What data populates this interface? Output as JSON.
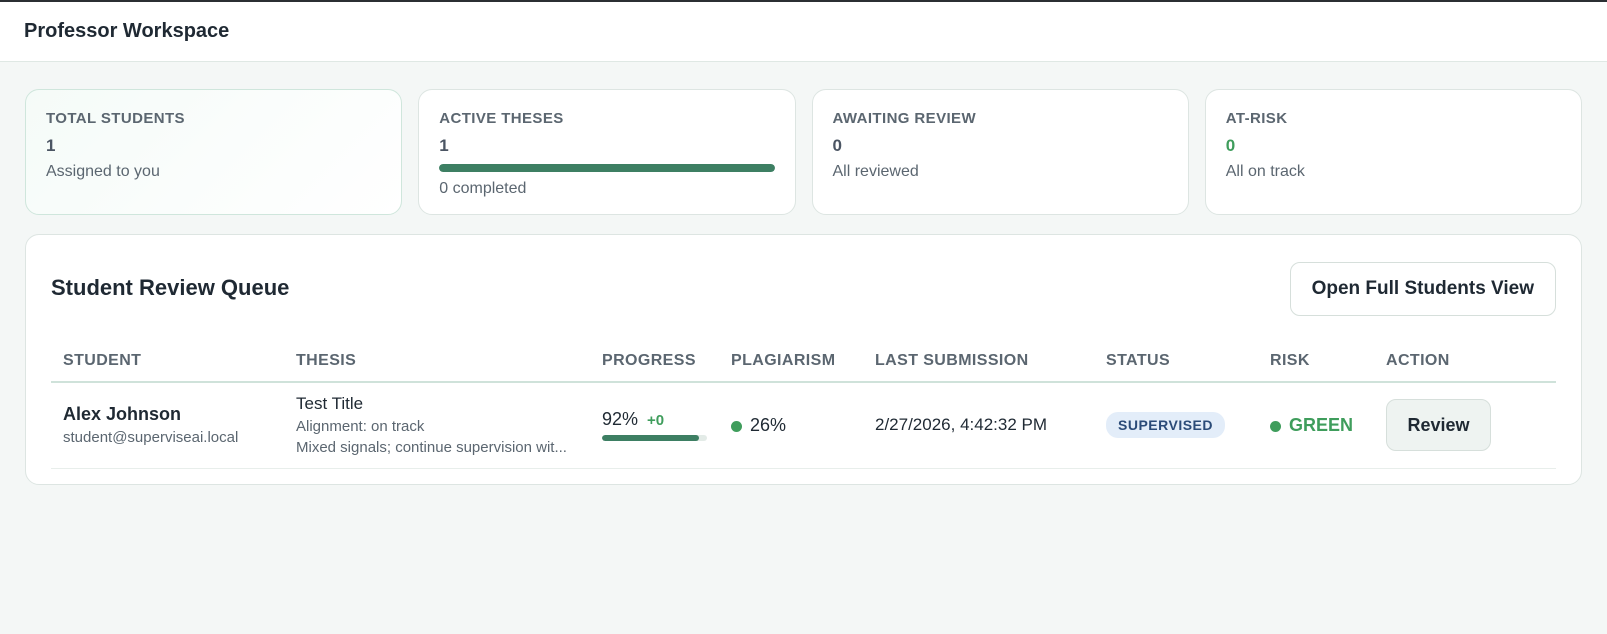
{
  "header": {
    "title": "Professor Workspace"
  },
  "stats": [
    {
      "label": "TOTAL STUDENTS",
      "value": "1",
      "sub": "Assigned to you"
    },
    {
      "label": "ACTIVE THESES",
      "value": "1",
      "progress": 1.0,
      "sub": "0 completed"
    },
    {
      "label": "AWAITING REVIEW",
      "value": "0",
      "sub": "All reviewed"
    },
    {
      "label": "AT-RISK",
      "value": "0",
      "sub": "All on track"
    }
  ],
  "queue": {
    "title": "Student Review Queue",
    "open_button": "Open Full Students View",
    "columns": [
      "STUDENT",
      "THESIS",
      "PROGRESS",
      "PLAGIARISM",
      "LAST SUBMISSION",
      "STATUS",
      "RISK",
      "ACTION"
    ],
    "rows": [
      {
        "name": "Alex Johnson",
        "email": "student@superviseai.local",
        "thesis_title": "Test Title",
        "alignment": "Alignment: on track",
        "note": "Mixed signals; continue supervision wit...",
        "progress": "92%",
        "progress_value": 92,
        "progress_delta": "+0",
        "plagiarism": "26%",
        "last_submission": "2/27/2026, 4:42:32 PM",
        "status": "SUPERVISED",
        "risk": "GREEN",
        "action": "Review"
      }
    ]
  },
  "colors": {
    "accent": "#3d7f63",
    "risk_green": "#3f9d5c",
    "status_badge_bg": "#e3edf9",
    "status_badge_text": "#2b4b78"
  }
}
